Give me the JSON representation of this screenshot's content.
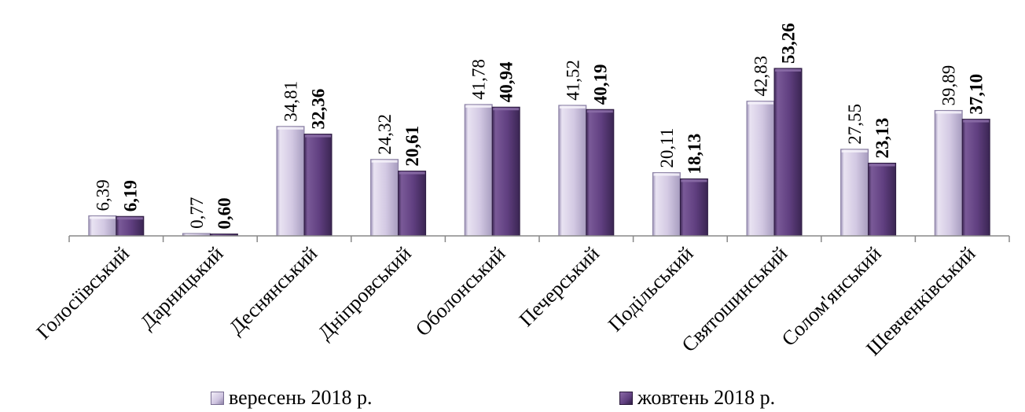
{
  "chart_data": {
    "type": "bar",
    "categories": [
      "Голосіївський",
      "Дарницький",
      "Деснянський",
      "Дніпровський",
      "Оболонський",
      "Печерський",
      "Подільський",
      "Святошинський",
      "Солом'янський",
      "Шевченківський"
    ],
    "series": [
      {
        "name": "вересень 2018 р.",
        "values": [
          6.39,
          0.77,
          34.81,
          24.32,
          41.78,
          41.52,
          20.11,
          42.83,
          27.55,
          39.89
        ],
        "labels": [
          "6,39",
          "0,77",
          "34,81",
          "24,32",
          "41,78",
          "41,52",
          "20,11",
          "42,83",
          "27,55",
          "39,89"
        ]
      },
      {
        "name": "жовтень 2018 р.",
        "values": [
          6.19,
          0.6,
          32.36,
          20.61,
          40.94,
          40.19,
          18.13,
          53.26,
          23.13,
          37.1
        ],
        "labels": [
          "6,19",
          "0,60",
          "32,36",
          "20,61",
          "40,94",
          "40,19",
          "18,13",
          "53,26",
          "23,13",
          "37,10"
        ]
      }
    ],
    "title": "",
    "xlabel": "",
    "ylabel": "",
    "ylim": [
      0,
      55
    ],
    "grid": false,
    "legend": "bottom",
    "colors": {
      "series1": "#cfc4e0",
      "series2": "#604080",
      "axis": "#888888"
    }
  }
}
